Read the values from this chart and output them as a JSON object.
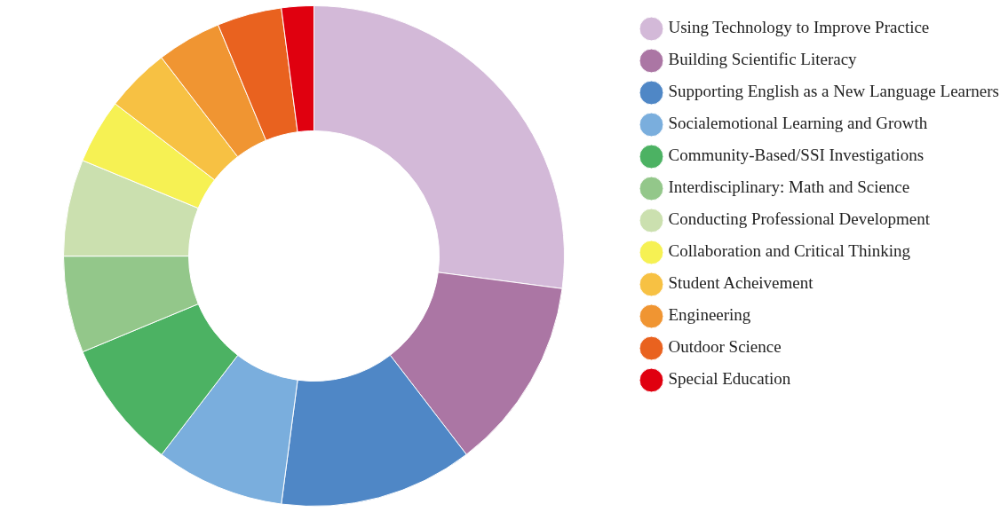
{
  "chart_data": {
    "type": "donut",
    "categories": [
      "Using Technology to Improve Practice",
      "Building Scientific Literacy",
      "Supporting English as a New Language Learners",
      "Socialemotional Learning and Growth",
      "Community-Based/SSI Investigations",
      "Interdisciplinary: Math and Science",
      "Conducting Professional Development",
      "Collaboration and Critical Thinking",
      "Student Acheivement",
      "Engineering",
      "Outdoor Science",
      "Special Education"
    ],
    "values": [
      27.08,
      12.5,
      12.5,
      8.33,
      8.33,
      6.25,
      6.25,
      4.17,
      4.17,
      4.17,
      4.17,
      2.08
    ],
    "colors": [
      "#d3b9d8",
      "#ab76a4",
      "#4f87c6",
      "#7aaedd",
      "#4cb263",
      "#93c78a",
      "#cbe0af",
      "#f6f153",
      "#f7c143",
      "#f09532",
      "#e9621f",
      "#e0000f"
    ],
    "legend": "right"
  }
}
